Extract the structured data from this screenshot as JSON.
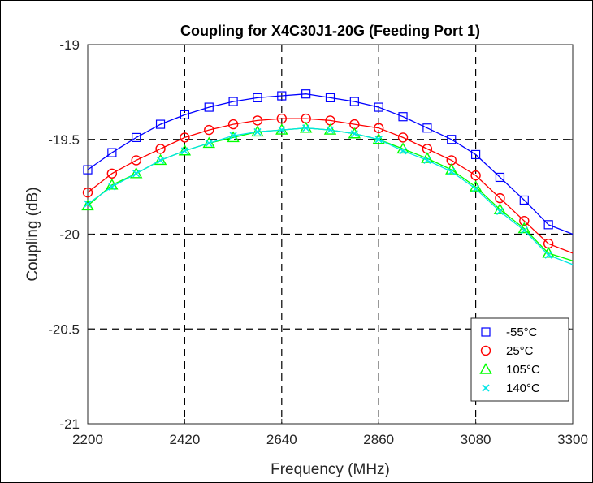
{
  "chart_data": {
    "type": "line",
    "title": "Coupling for X4C30J1-20G (Feeding Port 1)",
    "xlabel": "Frequency (MHz)",
    "ylabel": "Coupling (dB)",
    "xlim": [
      2200,
      3300
    ],
    "ylim": [
      -21,
      -19
    ],
    "xticks": [
      "2200",
      "2420",
      "2640",
      "2860",
      "3080",
      "3300"
    ],
    "yticks": [
      "-19",
      "-19.5",
      "-20",
      "-20.5",
      "-21"
    ],
    "grid": "dashed",
    "legend_position": "bottom-right",
    "x": [
      2200,
      2255,
      2310,
      2365,
      2420,
      2475,
      2530,
      2585,
      2640,
      2695,
      2750,
      2805,
      2860,
      2915,
      2970,
      3025,
      3080,
      3135,
      3190,
      3245,
      3300
    ],
    "series": [
      {
        "name": "-55°C",
        "color": "#0000ff",
        "marker": "square",
        "values": [
          -19.66,
          -19.57,
          -19.49,
          -19.42,
          -19.37,
          -19.33,
          -19.3,
          -19.28,
          -19.27,
          -19.26,
          -19.28,
          -19.3,
          -19.33,
          -19.38,
          -19.44,
          -19.5,
          -19.58,
          -19.7,
          -19.82,
          -19.95,
          -20.0
        ]
      },
      {
        "name": "25°C",
        "color": "#ff0000",
        "marker": "circle",
        "values": [
          -19.78,
          -19.68,
          -19.61,
          -19.55,
          -19.49,
          -19.45,
          -19.42,
          -19.4,
          -19.39,
          -19.39,
          -19.4,
          -19.42,
          -19.44,
          -19.49,
          -19.55,
          -19.61,
          -19.69,
          -19.81,
          -19.93,
          -20.05,
          -20.1
        ]
      },
      {
        "name": "105°C",
        "color": "#00ff00",
        "marker": "triangle",
        "values": [
          -19.85,
          -19.74,
          -19.68,
          -19.61,
          -19.56,
          -19.52,
          -19.49,
          -19.46,
          -19.45,
          -19.44,
          -19.45,
          -19.47,
          -19.5,
          -19.55,
          -19.6,
          -19.66,
          -19.75,
          -19.87,
          -19.97,
          -20.1,
          -20.14
        ]
      },
      {
        "name": "140°C",
        "color": "#00e5e5",
        "marker": "x",
        "values": [
          -19.84,
          -19.75,
          -19.68,
          -19.61,
          -19.56,
          -19.52,
          -19.48,
          -19.46,
          -19.45,
          -19.44,
          -19.45,
          -19.47,
          -19.5,
          -19.56,
          -19.61,
          -19.67,
          -19.76,
          -19.88,
          -19.98,
          -20.11,
          -20.16
        ]
      }
    ]
  }
}
